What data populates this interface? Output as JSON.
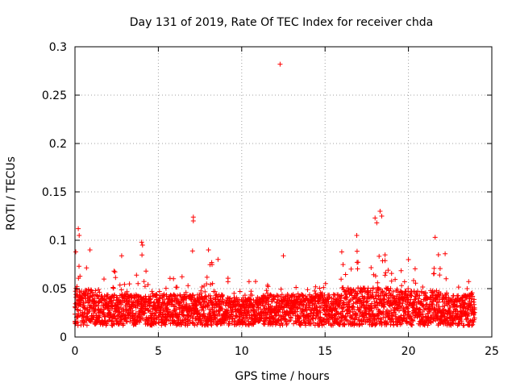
{
  "chart_data": {
    "type": "scatter",
    "title": "Day 131 of 2019, Rate Of TEC Index for receiver chda",
    "xlabel": "GPS time / hours",
    "ylabel": "ROTI / TECUs",
    "xlim": [
      0,
      25
    ],
    "ylim": [
      0,
      0.3
    ],
    "xticks": [
      0,
      5,
      10,
      15,
      20,
      25
    ],
    "yticks": [
      0,
      0.05,
      0.1,
      0.15,
      0.2,
      0.25,
      0.3
    ],
    "xtick_labels": [
      "0",
      "5",
      "10",
      "15",
      "20",
      "25"
    ],
    "ytick_labels": [
      "0",
      "0.05",
      "0.1",
      "0.15",
      "0.2",
      "0.25",
      "0.3"
    ],
    "grid": true,
    "marker": "+",
    "color": "#ff0000",
    "series": [
      {
        "name": "ROTI",
        "outliers": [
          {
            "x": 12.3,
            "y": 0.282
          },
          {
            "x": 7.1,
            "y": 0.124
          },
          {
            "x": 7.1,
            "y": 0.12
          },
          {
            "x": 18.3,
            "y": 0.13
          },
          {
            "x": 18.4,
            "y": 0.125
          },
          {
            "x": 18.0,
            "y": 0.123
          },
          {
            "x": 18.1,
            "y": 0.118
          },
          {
            "x": 0.2,
            "y": 0.112
          },
          {
            "x": 0.25,
            "y": 0.105
          },
          {
            "x": 16.9,
            "y": 0.105
          },
          {
            "x": 21.6,
            "y": 0.103
          },
          {
            "x": 4.0,
            "y": 0.098
          },
          {
            "x": 4.05,
            "y": 0.095
          },
          {
            "x": 0.9,
            "y": 0.09
          },
          {
            "x": 7.05,
            "y": 0.089
          },
          {
            "x": 0.05,
            "y": 0.088
          },
          {
            "x": 16.0,
            "y": 0.088
          },
          {
            "x": 21.8,
            "y": 0.085
          },
          {
            "x": 22.2,
            "y": 0.086
          },
          {
            "x": 12.5,
            "y": 0.084
          },
          {
            "x": 2.8,
            "y": 0.084
          },
          {
            "x": 20.0,
            "y": 0.08
          },
          {
            "x": 8.2,
            "y": 0.077
          }
        ]
      }
    ]
  }
}
